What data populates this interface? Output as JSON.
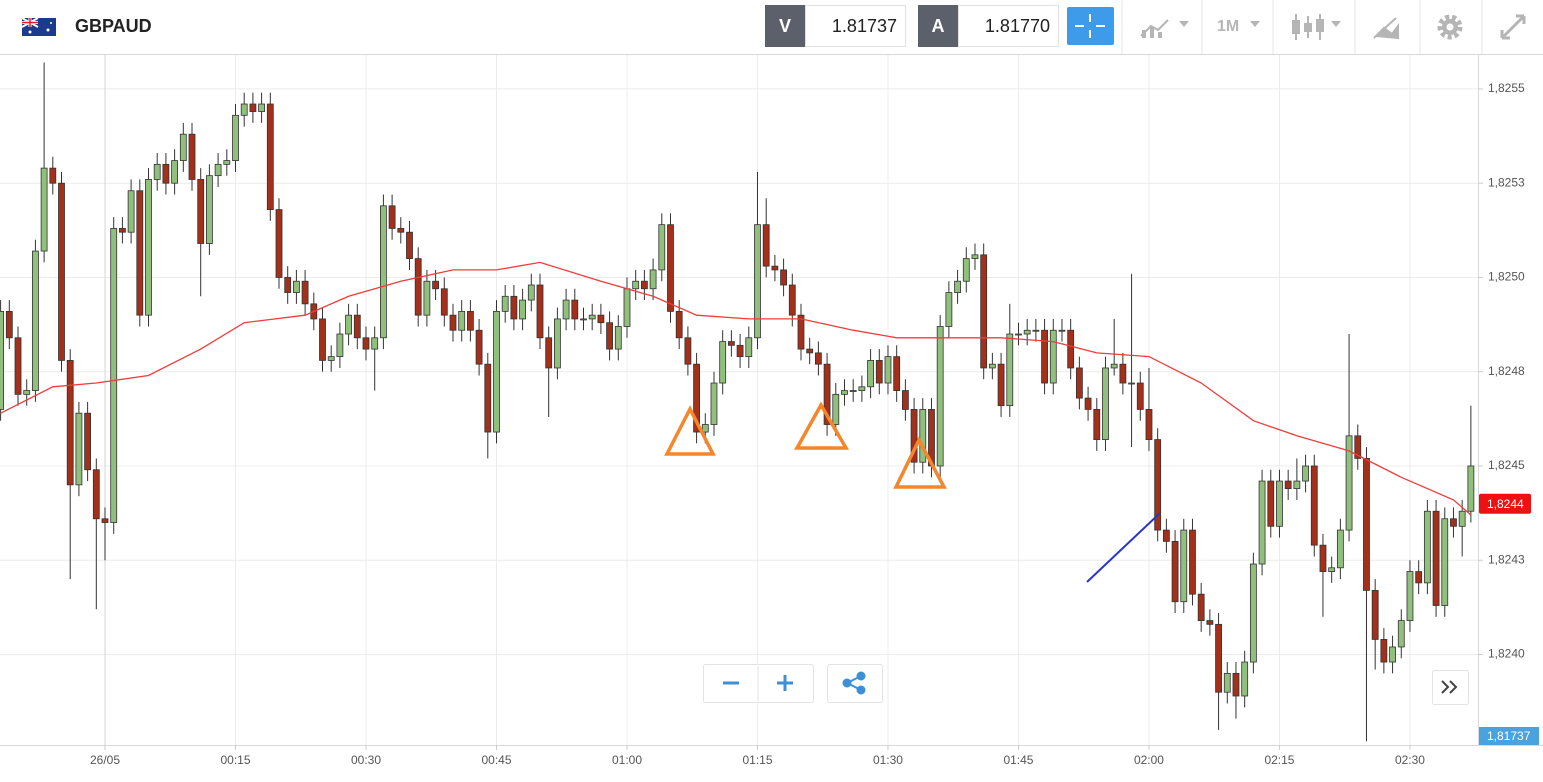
{
  "header": {
    "symbol": "GBPAUD",
    "bid_label": "V",
    "bid": "1.81737",
    "ask_label": "A",
    "ask": "1.81770",
    "timeframe": "1M"
  },
  "chart_data": {
    "type": "candlestick",
    "x": [
      -12,
      -11,
      -10,
      -9,
      -8,
      -7,
      -6,
      -5,
      -4,
      -3,
      -2,
      -1,
      0,
      1,
      2,
      3,
      4,
      5,
      6,
      7,
      8,
      9,
      10,
      11,
      12,
      13,
      14,
      15,
      16,
      17,
      18,
      19,
      20,
      21,
      22,
      23,
      24,
      25,
      26,
      27,
      28,
      29,
      30,
      31,
      32,
      33,
      34,
      35,
      36,
      37,
      38,
      39,
      40,
      41,
      42,
      43,
      44,
      45,
      46,
      47,
      48,
      49,
      50,
      51,
      52,
      53,
      54,
      55,
      56,
      57,
      58,
      59,
      60,
      61,
      62,
      63,
      64,
      65,
      66,
      67,
      68,
      69,
      70,
      71,
      72,
      73,
      74,
      75,
      76,
      77,
      78,
      79,
      80,
      81,
      82,
      83,
      84,
      85,
      86,
      87,
      88,
      89,
      90,
      91,
      92,
      93,
      94,
      95,
      96,
      97,
      98,
      99,
      100,
      101,
      102,
      103,
      104,
      105,
      106,
      107,
      108,
      109,
      110,
      111,
      112,
      113,
      114,
      115,
      116,
      117,
      118,
      119,
      120,
      121,
      122,
      123,
      124,
      125,
      126,
      127,
      128,
      129,
      130,
      131,
      132,
      133,
      134,
      135,
      136,
      137,
      138,
      139,
      140,
      141,
      142,
      143,
      144,
      145,
      146,
      147,
      148,
      149,
      150,
      151,
      152,
      153,
      154,
      155,
      156,
      157
    ],
    "open": [
      1.82465,
      1.82491,
      1.82484,
      1.82469,
      1.8247,
      1.82507,
      1.82529,
      1.82525,
      1.82478,
      1.82445,
      1.82464,
      1.82449,
      1.82436,
      1.82435,
      1.82513,
      1.82512,
      1.82523,
      1.8249,
      1.82526,
      1.8253,
      1.82525,
      1.82531,
      1.82538,
      1.82526,
      1.82509,
      1.82527,
      1.8253,
      1.82531,
      1.82543,
      1.82546,
      1.82544,
      1.82546,
      1.82518,
      1.825,
      1.82496,
      1.82499,
      1.82493,
      1.82489,
      1.82478,
      1.82479,
      1.82485,
      1.8249,
      1.82484,
      1.82481,
      1.82484,
      1.82519,
      1.82513,
      1.82512,
      1.82505,
      1.8249,
      1.82499,
      1.82497,
      1.8249,
      1.82486,
      1.82491,
      1.82486,
      1.82477,
      1.82459,
      1.82491,
      1.82495,
      1.82489,
      1.82494,
      1.82498,
      1.82484,
      1.82476,
      1.82489,
      1.82494,
      1.82489,
      1.82489,
      1.8249,
      1.82488,
      1.82481,
      1.82487,
      1.82497,
      1.82499,
      1.82497,
      1.82502,
      1.82514,
      1.82491,
      1.82484,
      1.82477,
      1.82459,
      1.82461,
      1.82472,
      1.82483,
      1.82482,
      1.82479,
      1.82484,
      1.82514,
      1.82503,
      1.82502,
      1.82498,
      1.8249,
      1.82481,
      1.8248,
      1.82477,
      1.82461,
      1.82469,
      1.8247,
      1.8247,
      1.82471,
      1.82478,
      1.82472,
      1.82479,
      1.8247,
      1.82465,
      1.82451,
      1.82465,
      1.8245,
      1.82487,
      1.82496,
      1.82499,
      1.82505,
      1.82506,
      1.82476,
      1.82477,
      1.82466,
      1.82485,
      1.82485,
      1.82486,
      1.82486,
      1.82472,
      1.82486,
      1.82486,
      1.82476,
      1.82468,
      1.82465,
      1.82457,
      1.82476,
      1.82477,
      1.82472,
      1.82472,
      1.82465,
      1.82457,
      1.82433,
      1.8243,
      1.82414,
      1.82433,
      1.82416,
      1.82409,
      1.82408,
      1.8239,
      1.82395,
      1.82389,
      1.82398,
      1.82424,
      1.82446,
      1.82434,
      1.82446,
      1.82444,
      1.82446,
      1.8245,
      1.82429,
      1.82422,
      1.82423,
      1.82433,
      1.82458,
      1.82452,
      1.82417,
      1.82404,
      1.82398,
      1.82402,
      1.82409,
      1.82422,
      1.82419,
      1.82438,
      1.82413,
      1.82436,
      1.82434,
      1.82438
    ],
    "high": [
      1.82494,
      1.82494,
      1.82487,
      1.82473,
      1.8251,
      1.82557,
      1.82532,
      1.82528,
      1.82481,
      1.82467,
      1.82467,
      1.82452,
      1.82439,
      1.82516,
      1.82516,
      1.82526,
      1.82526,
      1.82529,
      1.82533,
      1.82533,
      1.82534,
      1.82541,
      1.82541,
      1.82529,
      1.8253,
      1.82533,
      1.82534,
      1.82546,
      1.82549,
      1.82549,
      1.82549,
      1.82549,
      1.82521,
      1.82503,
      1.82502,
      1.82502,
      1.82496,
      1.82492,
      1.82482,
      1.82488,
      1.82493,
      1.82493,
      1.82487,
      1.82487,
      1.82522,
      1.82522,
      1.82516,
      1.82515,
      1.82508,
      1.82502,
      1.82502,
      1.825,
      1.82493,
      1.82494,
      1.82494,
      1.82489,
      1.8248,
      1.82494,
      1.82498,
      1.82498,
      1.82497,
      1.82501,
      1.82501,
      1.82487,
      1.82492,
      1.82497,
      1.82497,
      1.82492,
      1.82493,
      1.82493,
      1.82491,
      1.8249,
      1.825,
      1.82502,
      1.82502,
      1.82505,
      1.82517,
      1.82517,
      1.82494,
      1.82487,
      1.8248,
      1.82464,
      1.82475,
      1.82486,
      1.82486,
      1.82485,
      1.82487,
      1.82528,
      1.82521,
      1.82506,
      1.82505,
      1.82501,
      1.82493,
      1.82484,
      1.82483,
      1.8248,
      1.82472,
      1.82473,
      1.82473,
      1.82474,
      1.82481,
      1.82481,
      1.82482,
      1.82482,
      1.82473,
      1.82468,
      1.82468,
      1.82468,
      1.8249,
      1.82499,
      1.82502,
      1.82508,
      1.82509,
      1.82509,
      1.8248,
      1.8248,
      1.82493,
      1.82488,
      1.82489,
      1.82489,
      1.82489,
      1.82489,
      1.82489,
      1.82489,
      1.82479,
      1.82471,
      1.82468,
      1.82479,
      1.82489,
      1.8248,
      1.82501,
      1.82475,
      1.82476,
      1.8246,
      1.82436,
      1.82433,
      1.82436,
      1.82436,
      1.82419,
      1.82412,
      1.82411,
      1.82398,
      1.82398,
      1.82401,
      1.82427,
      1.82449,
      1.82449,
      1.82449,
      1.82449,
      1.82452,
      1.82453,
      1.82453,
      1.82432,
      1.82426,
      1.82436,
      1.82485,
      1.82461,
      1.82455,
      1.8242,
      1.82407,
      1.82405,
      1.82412,
      1.82425,
      1.82425,
      1.82441,
      1.82441,
      1.82439,
      1.82439,
      1.82441,
      1.82466
    ],
    "low": [
      1.82462,
      1.82481,
      1.82466,
      1.82466,
      1.82467,
      1.82504,
      1.82522,
      1.82475,
      1.8242,
      1.82442,
      1.82446,
      1.82412,
      1.82425,
      1.82432,
      1.82509,
      1.82509,
      1.82487,
      1.82487,
      1.82523,
      1.82522,
      1.82522,
      1.82528,
      1.82523,
      1.82495,
      1.82506,
      1.82524,
      1.82527,
      1.82528,
      1.8254,
      1.82541,
      1.82541,
      1.82515,
      1.82497,
      1.82493,
      1.82493,
      1.8249,
      1.82486,
      1.82475,
      1.82475,
      1.82476,
      1.82482,
      1.82481,
      1.82478,
      1.8247,
      1.82481,
      1.8251,
      1.82509,
      1.82502,
      1.82487,
      1.82487,
      1.82494,
      1.82487,
      1.82483,
      1.82483,
      1.82483,
      1.82474,
      1.82452,
      1.82456,
      1.82488,
      1.82486,
      1.82486,
      1.82491,
      1.82481,
      1.82463,
      1.82473,
      1.82486,
      1.82486,
      1.82486,
      1.82486,
      1.82485,
      1.82478,
      1.82478,
      1.82484,
      1.82494,
      1.82494,
      1.82494,
      1.82499,
      1.82488,
      1.82481,
      1.82474,
      1.82456,
      1.82456,
      1.82458,
      1.82469,
      1.82479,
      1.82476,
      1.82476,
      1.82481,
      1.825,
      1.82499,
      1.82495,
      1.82487,
      1.82478,
      1.82477,
      1.82474,
      1.82458,
      1.82458,
      1.82466,
      1.82467,
      1.82467,
      1.82468,
      1.82469,
      1.82469,
      1.82467,
      1.82462,
      1.82448,
      1.82448,
      1.82447,
      1.82447,
      1.82484,
      1.82493,
      1.82496,
      1.82502,
      1.82473,
      1.82473,
      1.82463,
      1.82463,
      1.82482,
      1.82482,
      1.82483,
      1.82469,
      1.82469,
      1.82483,
      1.82473,
      1.82465,
      1.82462,
      1.82454,
      1.82454,
      1.82474,
      1.82469,
      1.82455,
      1.82462,
      1.82454,
      1.8243,
      1.82427,
      1.82411,
      1.82411,
      1.82413,
      1.82406,
      1.82405,
      1.8238,
      1.82387,
      1.82383,
      1.82386,
      1.82395,
      1.82421,
      1.82431,
      1.82431,
      1.82441,
      1.82441,
      1.82443,
      1.82426,
      1.8241,
      1.82419,
      1.8242,
      1.8243,
      1.82449,
      1.82377,
      1.82396,
      1.82395,
      1.82395,
      1.82399,
      1.82406,
      1.82416,
      1.82416,
      1.8241,
      1.8241,
      1.82431,
      1.82426,
      1.82435
    ],
    "close": [
      1.82491,
      1.82484,
      1.82469,
      1.8247,
      1.82507,
      1.82529,
      1.82525,
      1.82478,
      1.82445,
      1.82464,
      1.82449,
      1.82436,
      1.82435,
      1.82513,
      1.82512,
      1.82523,
      1.8249,
      1.82526,
      1.8253,
      1.82525,
      1.82531,
      1.82538,
      1.82526,
      1.82509,
      1.82527,
      1.8253,
      1.82531,
      1.82543,
      1.82546,
      1.82544,
      1.82546,
      1.82518,
      1.825,
      1.82496,
      1.82499,
      1.82493,
      1.82489,
      1.82478,
      1.82479,
      1.82485,
      1.8249,
      1.82484,
      1.82481,
      1.82484,
      1.82519,
      1.82513,
      1.82512,
      1.82505,
      1.8249,
      1.82499,
      1.82497,
      1.8249,
      1.82486,
      1.82491,
      1.82486,
      1.82477,
      1.82459,
      1.82491,
      1.82495,
      1.82489,
      1.82494,
      1.82498,
      1.82484,
      1.82476,
      1.82489,
      1.82494,
      1.82489,
      1.82489,
      1.8249,
      1.82488,
      1.82481,
      1.82487,
      1.82497,
      1.82499,
      1.82497,
      1.82502,
      1.82514,
      1.82491,
      1.82484,
      1.82477,
      1.82459,
      1.82461,
      1.82472,
      1.82483,
      1.82482,
      1.82479,
      1.82484,
      1.82514,
      1.82503,
      1.82502,
      1.82498,
      1.8249,
      1.82481,
      1.8248,
      1.82477,
      1.82461,
      1.82469,
      1.8247,
      1.8247,
      1.82471,
      1.82478,
      1.82472,
      1.82479,
      1.8247,
      1.82465,
      1.82451,
      1.82465,
      1.8245,
      1.82487,
      1.82496,
      1.82499,
      1.82505,
      1.82506,
      1.82476,
      1.82477,
      1.82466,
      1.82485,
      1.82485,
      1.82486,
      1.82486,
      1.82472,
      1.82486,
      1.82486,
      1.82476,
      1.82468,
      1.82465,
      1.82457,
      1.82476,
      1.82477,
      1.82472,
      1.82472,
      1.82465,
      1.82457,
      1.82433,
      1.8243,
      1.82414,
      1.82433,
      1.82416,
      1.82409,
      1.82408,
      1.8239,
      1.82395,
      1.82389,
      1.82398,
      1.82424,
      1.82446,
      1.82434,
      1.82446,
      1.82444,
      1.82446,
      1.8245,
      1.82429,
      1.82422,
      1.82423,
      1.82433,
      1.82458,
      1.82452,
      1.82417,
      1.82404,
      1.82398,
      1.82402,
      1.82409,
      1.82422,
      1.82419,
      1.82438,
      1.82413,
      1.82436,
      1.82434,
      1.82438,
      1.8245
    ],
    "up_color": "#90c07c",
    "down_color": "#a3301a",
    "wick_color": "#333333",
    "xlim": [
      -12.07,
      157.82
    ],
    "ylim": [
      1.82376,
      1.82559
    ],
    "xticks": [
      {
        "value": 0,
        "label": "26/05"
      },
      {
        "value": 15,
        "label": "00:15"
      },
      {
        "value": 30,
        "label": "00:30"
      },
      {
        "value": 45,
        "label": "00:45"
      },
      {
        "value": 60,
        "label": "01:00"
      },
      {
        "value": 75,
        "label": "01:15"
      },
      {
        "value": 90,
        "label": "01:30"
      },
      {
        "value": 105,
        "label": "01:45"
      },
      {
        "value": 120,
        "label": "02:00"
      },
      {
        "value": 135,
        "label": "02:15"
      },
      {
        "value": 150,
        "label": "02:30"
      }
    ],
    "yticks": [
      {
        "value": 1.8255,
        "label": "1,8255"
      },
      {
        "value": 1.82525,
        "label": "1,8253"
      },
      {
        "value": 1.825,
        "label": "1,8250"
      },
      {
        "value": 1.82475,
        "label": "1,8248"
      },
      {
        "value": 1.8245,
        "label": "1,8245"
      },
      {
        "value": 1.82425,
        "label": "1,8243"
      },
      {
        "value": 1.824,
        "label": "1,8240"
      }
    ],
    "grid": true,
    "overlay": {
      "color": "#f03c3c",
      "x": [
        -12,
        -6,
        -1,
        5,
        11,
        16,
        23,
        28,
        34,
        40,
        45,
        50,
        57,
        63,
        68,
        74,
        80,
        86,
        91,
        97,
        103,
        109,
        114,
        120,
        126,
        132,
        137,
        143,
        149,
        155,
        157
      ],
      "values": [
        1.82464,
        1.82471,
        1.82472,
        1.82474,
        1.82481,
        1.82488,
        1.8249,
        1.82495,
        1.82499,
        1.82502,
        1.82502,
        1.82504,
        1.82499,
        1.82495,
        1.8249,
        1.82489,
        1.82489,
        1.82486,
        1.82484,
        1.82484,
        1.82484,
        1.82483,
        1.8248,
        1.82479,
        1.82472,
        1.82462,
        1.82458,
        1.82454,
        1.82447,
        1.82441,
        1.82437
      ]
    },
    "last_price": {
      "value": 1.8244,
      "label": "1,8244",
      "color": "#ee1111"
    },
    "bid_tag": "1,81737"
  }
}
